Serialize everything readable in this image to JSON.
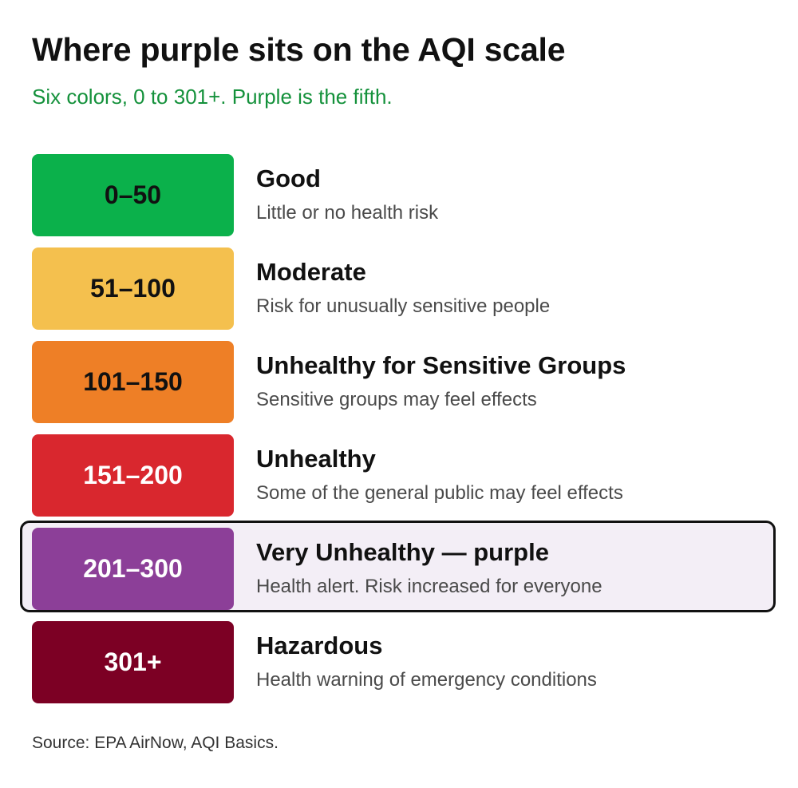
{
  "title": "Where purple sits on the AQI scale",
  "subtitle": "Six colors, 0 to 301+. Purple is the fifth.",
  "colors": {
    "subtitle": "#14913b"
  },
  "levels": [
    {
      "range": "0–50",
      "category": "Good",
      "description": "Little or no health risk",
      "color": "#0bb14b",
      "text_color": "#111111",
      "highlighted": false
    },
    {
      "range": "51–100",
      "category": "Moderate",
      "description": "Risk for unusually sensitive people",
      "color": "#f4c04e",
      "text_color": "#111111",
      "highlighted": false
    },
    {
      "range": "101–150",
      "category": "Unhealthy for Sensitive Groups",
      "description": "Sensitive groups may feel effects",
      "color": "#ee7f26",
      "text_color": "#111111",
      "highlighted": false
    },
    {
      "range": "151–200",
      "category": "Unhealthy",
      "description": "Some of the general public may feel effects",
      "color": "#d9272e",
      "text_color": "#ffffff",
      "highlighted": false
    },
    {
      "range": "201–300",
      "category": "Very Unhealthy — purple",
      "description": "Health alert. Risk increased for everyone",
      "color": "#8c3f98",
      "text_color": "#ffffff",
      "highlighted": true
    },
    {
      "range": "301+",
      "category": "Hazardous",
      "description": "Health warning of emergency conditions",
      "color": "#7c0024",
      "text_color": "#ffffff",
      "highlighted": false
    }
  ],
  "source": "Source: EPA AirNow, AQI Basics."
}
